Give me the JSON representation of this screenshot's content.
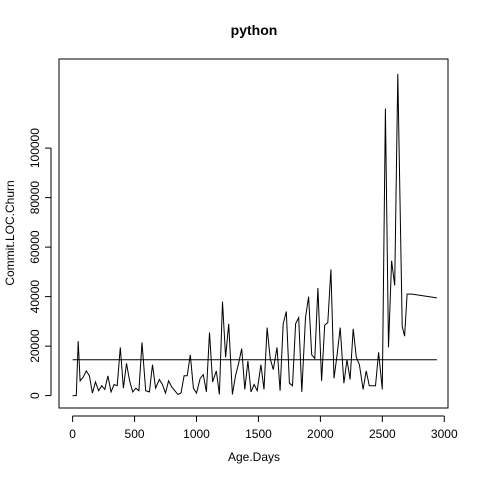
{
  "chart_data": {
    "type": "line",
    "title": "python",
    "xlabel": "Age.Days",
    "ylabel": "Commit.LOC.Churn",
    "xlim": [
      -110,
      3030
    ],
    "ylim": [
      -5000,
      136000
    ],
    "x_ticks": [
      0,
      500,
      1000,
      1500,
      2000,
      2500,
      3000
    ],
    "x_tick_labels": [
      "0",
      "500",
      "1000",
      "1500",
      "2000",
      "2500",
      "3000"
    ],
    "y_ticks": [
      0,
      20000,
      40000,
      60000,
      80000,
      100000
    ],
    "y_tick_labels": [
      "0",
      "20000",
      "40000",
      "60000",
      "80000",
      "100000"
    ],
    "grid": false,
    "reference_line": {
      "y": 14500
    },
    "series": [
      {
        "x": [
          0,
          30,
          45,
          60,
          85,
          110,
          135,
          160,
          185,
          210,
          235,
          260,
          285,
          310,
          335,
          360,
          385,
          410,
          435,
          460,
          485,
          510,
          535,
          560,
          590,
          620,
          645,
          670,
          700,
          725,
          750,
          775,
          800,
          825,
          850,
          875,
          900,
          925,
          950,
          975,
          1000,
          1030,
          1055,
          1080,
          1105,
          1130,
          1160,
          1185,
          1210,
          1235,
          1260,
          1290,
          1315,
          1340,
          1365,
          1390,
          1415,
          1440,
          1465,
          1490,
          1520,
          1545,
          1570,
          1595,
          1620,
          1650,
          1675,
          1700,
          1725,
          1750,
          1775,
          1800,
          1825,
          1850,
          1880,
          1905,
          1930,
          1955,
          1980,
          2010,
          2035,
          2060,
          2085,
          2110,
          2135,
          2160,
          2190,
          2215,
          2240,
          2265,
          2290,
          2315,
          2345,
          2370,
          2395,
          2420,
          2445,
          2470,
          2500,
          2525,
          2550,
          2575,
          2600,
          2625,
          2660,
          2680,
          2700,
          2720,
          2740,
          2940
        ],
        "y": [
          0,
          0,
          22000,
          6000,
          7500,
          10000,
          8000,
          1000,
          5500,
          2000,
          4000,
          2500,
          8000,
          1500,
          4500,
          4000,
          19500,
          3000,
          13000,
          6000,
          1500,
          3000,
          2000,
          21500,
          2000,
          1500,
          12500,
          3000,
          6500,
          4500,
          1000,
          6000,
          3500,
          2000,
          500,
          1000,
          8000,
          8000,
          16500,
          3000,
          1000,
          7000,
          8500,
          1500,
          25500,
          5500,
          10000,
          500,
          38000,
          15500,
          29000,
          500,
          8000,
          13000,
          19000,
          2500,
          14000,
          1500,
          4500,
          2000,
          12500,
          2500,
          27500,
          15000,
          10500,
          19500,
          2000,
          29000,
          34000,
          5000,
          4000,
          29000,
          31500,
          1500,
          31500,
          40000,
          16500,
          15000,
          43500,
          6000,
          28500,
          29500,
          51000,
          7000,
          16500,
          27500,
          5000,
          14500,
          6500,
          27000,
          15500,
          12500,
          2500,
          10000,
          4000,
          4000,
          4000,
          17500,
          2500,
          116000,
          19500,
          54500,
          44500,
          130000,
          28000,
          24000,
          41000,
          41000,
          41000,
          39500
        ]
      }
    ]
  }
}
